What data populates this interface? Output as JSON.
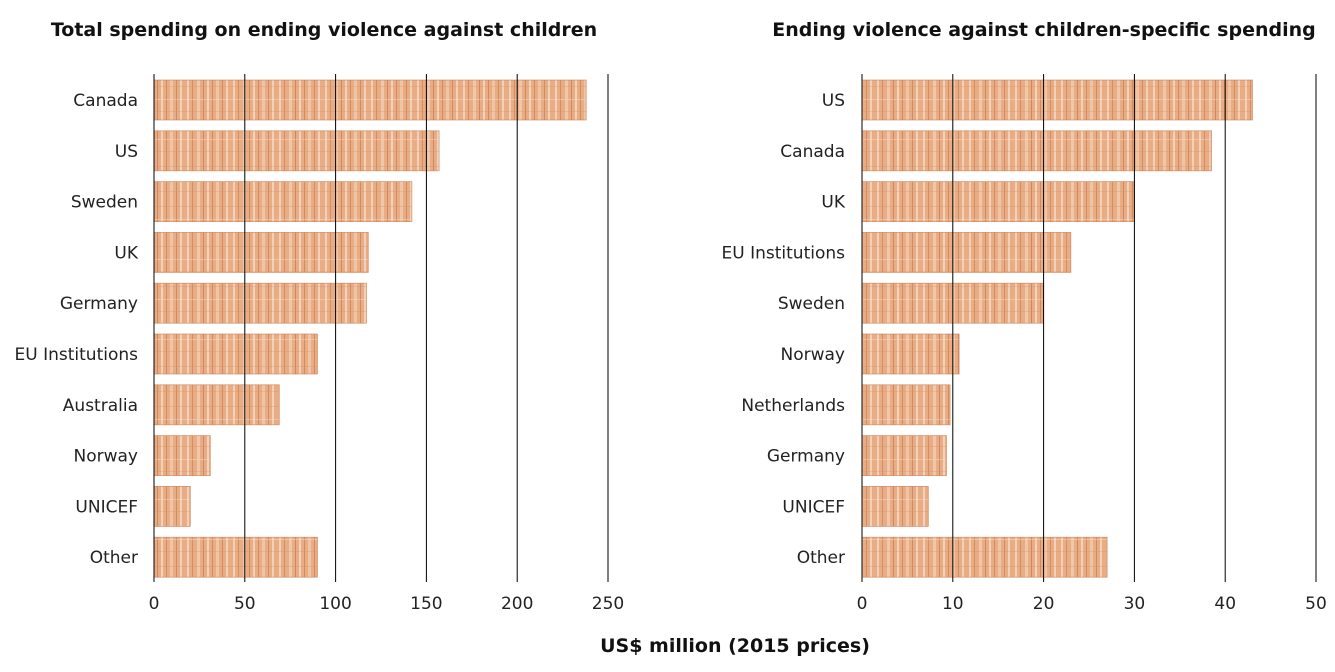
{
  "xlabel": "US$ million (2015 prices)",
  "colors": {
    "bar": "#e7a77d",
    "bar_dark": "#c87b4c",
    "bar_light": "#f6dcc7",
    "grid": "#000000"
  },
  "chart_data": [
    {
      "type": "bar",
      "orientation": "horizontal",
      "title": "Total spending on ending violence against children",
      "categories": [
        "Canada",
        "US",
        "Sweden",
        "UK",
        "Germany",
        "EU Institutions",
        "Australia",
        "Norway",
        "UNICEF",
        "Other"
      ],
      "values": [
        238,
        157,
        142,
        118,
        117,
        90,
        69,
        31,
        20,
        90
      ],
      "xlim": [
        0,
        250
      ],
      "xticks": [
        0,
        50,
        100,
        150,
        200,
        250
      ],
      "grid": true
    },
    {
      "type": "bar",
      "orientation": "horizontal",
      "title": "Ending violence against children-specific spending",
      "categories": [
        "US",
        "Canada",
        "UK",
        "EU Institutions",
        "Sweden",
        "Norway",
        "Netherlands",
        "Germany",
        "UNICEF",
        "Other"
      ],
      "values": [
        43,
        38.5,
        30,
        23,
        20,
        10.7,
        9.7,
        9.3,
        7.3,
        27
      ],
      "xlim": [
        0,
        50
      ],
      "xticks": [
        0,
        10,
        20,
        30,
        40,
        50
      ],
      "grid": true
    }
  ]
}
